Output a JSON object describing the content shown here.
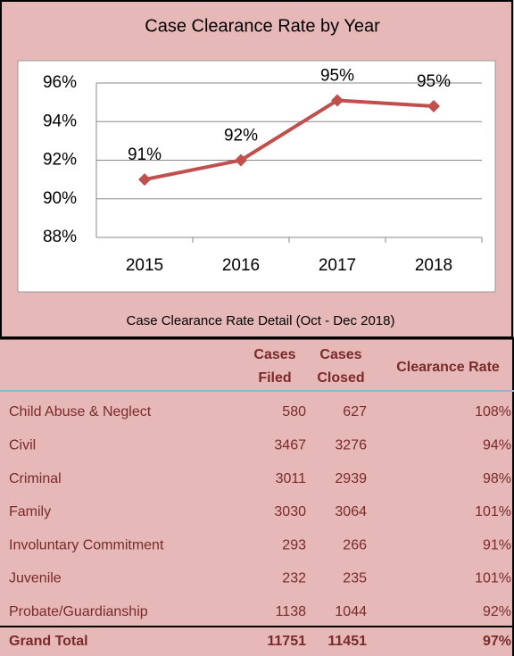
{
  "chart_data": {
    "type": "line",
    "title": "Case Clearance Rate by Year",
    "categories": [
      "2015",
      "2016",
      "2017",
      "2018"
    ],
    "series": [
      {
        "color": "#c0504d",
        "values": [
          91,
          92,
          95.1,
          94.8
        ],
        "value_labels": [
          "91%",
          "92%",
          "95%",
          "95%"
        ]
      }
    ],
    "ylim": [
      88,
      96
    ],
    "yticks": [
      {
        "value": 88,
        "label": "88%"
      },
      {
        "value": 90,
        "label": "90%"
      },
      {
        "value": 92,
        "label": "92%"
      },
      {
        "value": 94,
        "label": "94%"
      },
      {
        "value": 96,
        "label": "96%"
      }
    ],
    "grid": true
  },
  "table": {
    "title": "Case Clearance Rate Detail (Oct - Dec 2018)",
    "headers": [
      "Cases Filed",
      "Cases Closed",
      "Clearance Rate"
    ],
    "rows": [
      [
        "Child Abuse & Neglect",
        "580",
        "627",
        "108%"
      ],
      [
        "Civil",
        "3467",
        "3276",
        "94%"
      ],
      [
        "Criminal",
        "3011",
        "2939",
        "98%"
      ],
      [
        "Family",
        "3030",
        "3064",
        "101%"
      ],
      [
        "Involuntary Commitment",
        "293",
        "266",
        "91%"
      ],
      [
        "Juvenile",
        "232",
        "235",
        "101%"
      ],
      [
        "Probate/Guardianship",
        "1138",
        "1044",
        "92%"
      ]
    ],
    "total": [
      "Grand Total",
      "11751",
      "11451",
      "97%"
    ]
  }
}
